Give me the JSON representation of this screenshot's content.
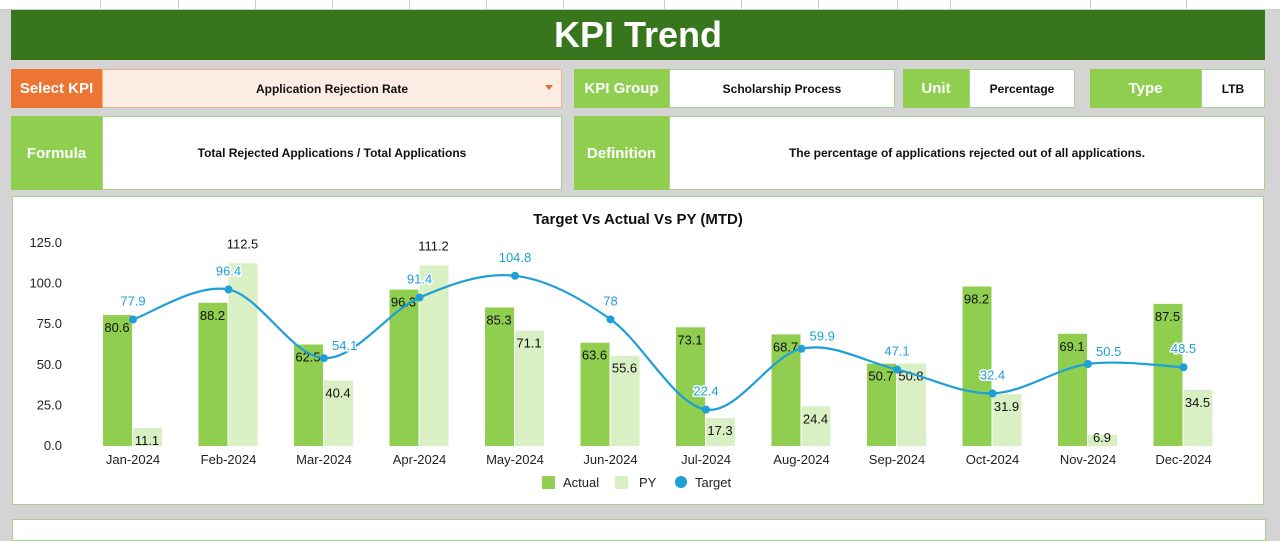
{
  "header": {
    "title": "KPI Trend"
  },
  "select_kpi": {
    "label": "Select KPI",
    "value": "Application Rejection Rate"
  },
  "kpi_group": {
    "label": "KPI Group",
    "value": "Scholarship Process"
  },
  "unit": {
    "label": "Unit",
    "value": "Percentage"
  },
  "type": {
    "label": "Type",
    "value": "LTB"
  },
  "formula": {
    "label": "Formula",
    "value": "Total Rejected Applications / Total Applications"
  },
  "definition": {
    "label": "Definition",
    "value": "The percentage of applications rejected out of all applications."
  },
  "colors": {
    "actual": "#8fce4f",
    "py": "#d9efc4",
    "target": "#1e9fd8",
    "header": "#38761d",
    "select": "#ec7534"
  },
  "chart_data": {
    "type": "bar",
    "title": "Target Vs Actual Vs PY (MTD)",
    "categories": [
      "Jan-2024",
      "Feb-2024",
      "Mar-2024",
      "Apr-2024",
      "May-2024",
      "Jun-2024",
      "Jul-2024",
      "Aug-2024",
      "Sep-2024",
      "Oct-2024",
      "Nov-2024",
      "Dec-2024"
    ],
    "ylim": [
      0,
      125
    ],
    "yticks": [
      "0.0",
      "25.0",
      "50.0",
      "75.0",
      "100.0",
      "125.0"
    ],
    "legend_position": "bottom",
    "series": [
      {
        "name": "Actual",
        "type": "bar",
        "values": [
          80.6,
          88.2,
          62.5,
          96.3,
          85.3,
          63.6,
          73.1,
          68.7,
          50.7,
          98.2,
          69.1,
          87.5
        ]
      },
      {
        "name": "PY",
        "type": "bar",
        "values": [
          11.1,
          112.5,
          40.4,
          111.2,
          71.1,
          55.6,
          17.3,
          24.4,
          50.8,
          31.9,
          6.9,
          34.5
        ]
      },
      {
        "name": "Target",
        "type": "line",
        "values": [
          77.9,
          96.4,
          54.1,
          91.4,
          104.8,
          78.0,
          22.4,
          59.9,
          47.1,
          32.4,
          50.5,
          48.5
        ]
      }
    ]
  }
}
